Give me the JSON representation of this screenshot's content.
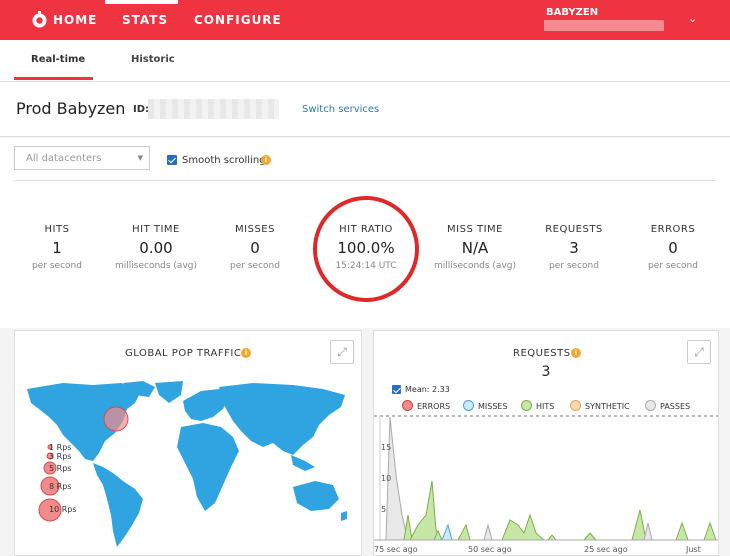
{
  "nav": {
    "home": "HOME",
    "stats": "STATS",
    "configure": "CONFIGURE",
    "account": "BABYZEN",
    "caret": "⌄"
  },
  "subtabs": {
    "realtime": "Real-time",
    "historic": "Historic"
  },
  "service": {
    "name": "Prod Babyzen",
    "id_label": "ID:",
    "switch_link": "Switch services"
  },
  "filters": {
    "datacenter_placeholder": "All datacenters",
    "smooth_label": "Smooth scrolling"
  },
  "stats": [
    {
      "label": "HITS",
      "value": "1",
      "unit": "per second"
    },
    {
      "label": "HIT TIME",
      "value": "0.00",
      "unit": "milliseconds (avg)"
    },
    {
      "label": "MISSES",
      "value": "0",
      "unit": "per second"
    },
    {
      "label": "HIT RATIO",
      "value": "100.0%",
      "unit": "15:24:14 UTC"
    },
    {
      "label": "MISS TIME",
      "value": "N/A",
      "unit": "milliseconds (avg)"
    },
    {
      "label": "REQUESTS",
      "value": "3",
      "unit": "per second"
    },
    {
      "label": "ERRORS",
      "value": "0",
      "unit": "per second"
    }
  ],
  "map_panel": {
    "title": "GLOBAL POP TRAFFIC",
    "legend": [
      "1 Rps",
      "3 Rps",
      "5 Rps",
      "8 Rps",
      "10 Rps"
    ]
  },
  "requests_panel": {
    "title": "REQUESTS",
    "count": "3",
    "mean_label": "Mean: 2.33",
    "legend": [
      {
        "label": "ERRORS",
        "color": "#f28b8b",
        "border": "#d04545"
      },
      {
        "label": "MISSES",
        "color": "#cfe8f5",
        "border": "#4aa3d6"
      },
      {
        "label": "HITS",
        "color": "#c8e6a6",
        "border": "#79b145"
      },
      {
        "label": "SYNTHETIC",
        "color": "#fad8b0",
        "border": "#e8a060"
      },
      {
        "label": "PASSES",
        "color": "#e8e8e8",
        "border": "#aaaaaa"
      }
    ],
    "y_ticks": [
      "15",
      "10",
      "5"
    ],
    "x_ticks": [
      "75 sec ago",
      "50 sec ago",
      "25 sec ago",
      "Just now"
    ]
  },
  "colors": {
    "brand": "#ef3340",
    "link": "#2a7ab8",
    "ring": "#e02828",
    "map": "#2fa4e0"
  }
}
